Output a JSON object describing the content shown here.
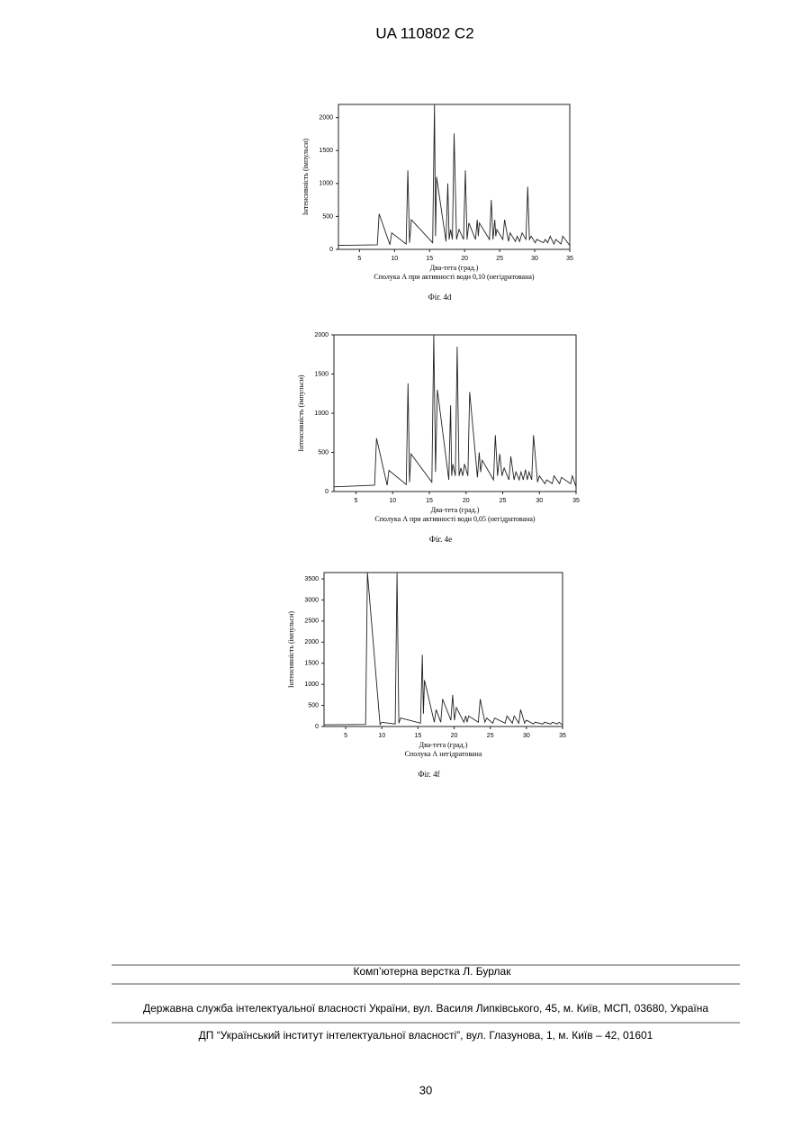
{
  "header": {
    "title": "UA   110802   C2"
  },
  "chart_data": [
    {
      "type": "line",
      "figure": "Фіг. 4d",
      "caption": "Сполука А при активності води 0,10 (негідратована)",
      "xlabel": "Два-тета (град.)",
      "ylabel": "Інтенсивність (імпульси)",
      "color": "#222",
      "xlim": [
        2,
        35
      ],
      "xticks": [
        5,
        10,
        15,
        20,
        25,
        30,
        35
      ],
      "ylim": [
        0,
        2200
      ],
      "yticks": [
        0,
        500,
        1000,
        1500,
        2000
      ],
      "x": [
        2,
        7.55,
        7.8,
        9.35,
        9.6,
        11.65,
        11.9,
        12.15,
        12.4,
        15.45,
        15.7,
        15.85,
        16.0,
        17.35,
        17.6,
        17.8,
        18.0,
        18.25,
        18.5,
        18.85,
        19.2,
        19.85,
        20.1,
        20.35,
        20.6,
        21.55,
        21.8,
        21.95,
        22.1,
        23.55,
        23.8,
        24.05,
        24.3,
        24.45,
        24.6,
        25.45,
        25.7,
        26.25,
        26.5,
        27.25,
        27.5,
        27.85,
        28.2,
        28.75,
        29.0,
        29.25,
        29.5,
        30.05,
        30.3,
        31.25,
        31.5,
        31.85,
        32.2,
        32.75,
        33.0,
        33.75,
        34.0,
        35
      ],
      "values": [
        60,
        70,
        540,
        70,
        250,
        80,
        1200,
        100,
        450,
        100,
        2200,
        200,
        1100,
        120,
        1000,
        150,
        300,
        150,
        1760,
        150,
        300,
        150,
        1200,
        150,
        400,
        150,
        450,
        200,
        400,
        150,
        750,
        150,
        450,
        200,
        300,
        150,
        450,
        120,
        250,
        120,
        200,
        120,
        250,
        150,
        950,
        150,
        200,
        100,
        150,
        100,
        150,
        100,
        200,
        80,
        150,
        80,
        200,
        60
      ]
    },
    {
      "type": "line",
      "figure": "Фіг. 4e",
      "caption": "Сполука А при активності води 0,05 (негідратована)",
      "xlabel": "Два-тета (град.)",
      "ylabel": "Інтенсивність (імпульси)",
      "color": "#222",
      "xlim": [
        2,
        35
      ],
      "xticks": [
        5,
        10,
        15,
        20,
        25,
        30,
        35
      ],
      "ylim": [
        0,
        2000
      ],
      "yticks": [
        0,
        500,
        1000,
        1500,
        2000
      ],
      "x": [
        2,
        7.55,
        7.8,
        9.25,
        9.5,
        11.85,
        12.1,
        12.3,
        12.5,
        15.35,
        15.6,
        15.85,
        16.1,
        17.65,
        17.9,
        18.05,
        18.2,
        18.55,
        18.8,
        19.05,
        19.3,
        19.55,
        19.8,
        20.25,
        20.5,
        21.55,
        21.8,
        22.0,
        22.2,
        23.75,
        24.0,
        24.3,
        24.6,
        24.9,
        25.2,
        25.85,
        26.1,
        26.55,
        26.8,
        27.25,
        27.5,
        27.8,
        28.1,
        28.35,
        28.6,
        28.95,
        29.2,
        29.75,
        30.0,
        30.75,
        31.0,
        31.75,
        32.0,
        32.75,
        33.0,
        34.25,
        34.5,
        35
      ],
      "values": [
        60,
        80,
        680,
        80,
        270,
        90,
        1380,
        120,
        480,
        120,
        2000,
        250,
        1300,
        150,
        1100,
        200,
        350,
        200,
        1850,
        200,
        300,
        200,
        350,
        200,
        1270,
        180,
        500,
        250,
        400,
        150,
        720,
        200,
        480,
        200,
        300,
        150,
        450,
        150,
        250,
        150,
        250,
        150,
        280,
        150,
        250,
        150,
        720,
        120,
        200,
        100,
        150,
        100,
        200,
        100,
        180,
        100,
        200,
        60
      ]
    },
    {
      "type": "line",
      "figure": "Фіг. 4f",
      "caption": "Сполука А негідратована",
      "xlabel": "Два-тета (град.)",
      "ylabel": "Інтенсивність (імпульси)",
      "color": "#222",
      "xlim": [
        2,
        35
      ],
      "xticks": [
        5,
        10,
        15,
        20,
        25,
        30,
        35
      ],
      "ylim": [
        0,
        3650
      ],
      "yticks": [
        0,
        500,
        1000,
        1500,
        2000,
        2500,
        3000,
        3500
      ],
      "x": [
        2,
        7.75,
        8.0,
        9.75,
        10.0,
        11.85,
        12.1,
        12.35,
        12.6,
        15.35,
        15.6,
        15.75,
        15.9,
        17.25,
        17.5,
        18.15,
        18.4,
        19.55,
        19.8,
        20.05,
        20.3,
        21.35,
        21.6,
        21.8,
        22.0,
        23.35,
        23.6,
        24.25,
        24.5,
        25.35,
        25.6,
        27.05,
        27.3,
        28.05,
        28.3,
        28.95,
        29.2,
        29.75,
        30.0,
        30.95,
        31.2,
        32.25,
        32.5,
        33.35,
        33.6,
        34.25,
        34.5,
        35
      ],
      "values": [
        40,
        50,
        3650,
        50,
        100,
        60,
        3650,
        80,
        200,
        80,
        1700,
        300,
        1100,
        100,
        400,
        100,
        650,
        150,
        750,
        150,
        450,
        100,
        250,
        100,
        250,
        100,
        650,
        100,
        200,
        80,
        200,
        80,
        250,
        80,
        250,
        80,
        400,
        80,
        150,
        60,
        100,
        60,
        100,
        60,
        100,
        60,
        100,
        40
      ]
    }
  ],
  "footer": {
    "layout": "Комп’ютерна верстка Л. Бурлак",
    "publisher": "Державна служба інтелектуальної власності України, вул. Василя Липківського, 45, м. Київ, МСП, 03680, Україна",
    "printer": "ДП “Український інститут інтелектуальної власності”, вул. Глазунова, 1, м. Київ – 42, 01601",
    "page": "30"
  }
}
